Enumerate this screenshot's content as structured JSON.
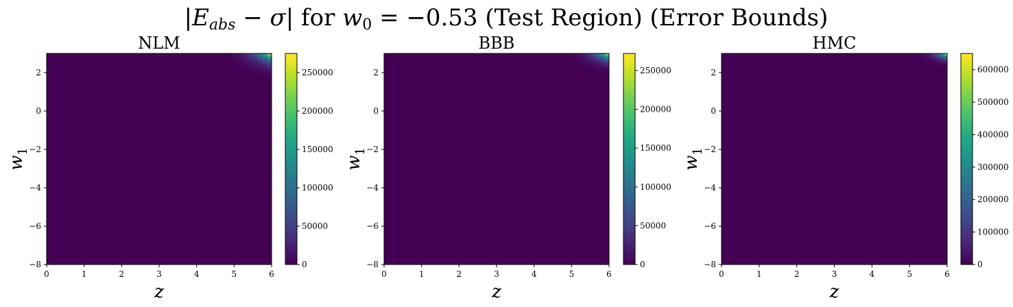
{
  "figure": {
    "title": "|E_abs − σ| for w_0 = −0.53 (Test Region) (Error Bounds)"
  },
  "chart_data": [
    {
      "type": "heatmap",
      "title": "NLM",
      "xlabel": "z",
      "ylabel": "w_1",
      "xlim": [
        0,
        6
      ],
      "ylim": [
        -8,
        3
      ],
      "x_ticks": [
        "0",
        "1",
        "2",
        "3",
        "4",
        "5",
        "6"
      ],
      "y_ticks": [
        "−8",
        "−6",
        "−4",
        "−2",
        "0",
        "2"
      ],
      "colorbar": {
        "min": 0,
        "max": 275000,
        "ticks": [
          "0",
          "50000",
          "100000",
          "150000",
          "200000",
          "250000"
        ],
        "colormap": "viridis"
      },
      "hotspot": {
        "z_start": 4.3,
        "w1_start": 1.3,
        "peak_value": 275000,
        "peak_location": "top-right"
      }
    },
    {
      "type": "heatmap",
      "title": "BBB",
      "xlabel": "z",
      "ylabel": "w_1",
      "xlim": [
        0,
        6
      ],
      "ylim": [
        -8,
        3
      ],
      "x_ticks": [
        "0",
        "1",
        "2",
        "3",
        "4",
        "5",
        "6"
      ],
      "y_ticks": [
        "−8",
        "−6",
        "−4",
        "−2",
        "0",
        "2"
      ],
      "colorbar": {
        "min": 0,
        "max": 272000,
        "ticks": [
          "0",
          "50000",
          "100000",
          "150000",
          "200000",
          "250000"
        ],
        "colormap": "viridis"
      },
      "hotspot": {
        "z_start": 4.5,
        "w1_start": 1.6,
        "peak_value": 272000,
        "peak_location": "top-right"
      }
    },
    {
      "type": "heatmap",
      "title": "HMC",
      "xlabel": "z",
      "ylabel": "w_1",
      "xlim": [
        0,
        6
      ],
      "ylim": [
        -8,
        3
      ],
      "x_ticks": [
        "0",
        "1",
        "2",
        "3",
        "4",
        "5",
        "6"
      ],
      "y_ticks": [
        "−8",
        "−6",
        "−4",
        "−2",
        "0",
        "2"
      ],
      "colorbar": {
        "min": 0,
        "max": 650000,
        "ticks": [
          "0",
          "100000",
          "200000",
          "300000",
          "400000",
          "500000",
          "600000"
        ],
        "colormap": "viridis"
      },
      "hotspot": {
        "z_start": 4.9,
        "w1_start": 2.0,
        "peak_value": 650000,
        "peak_location": "top-right"
      }
    }
  ]
}
